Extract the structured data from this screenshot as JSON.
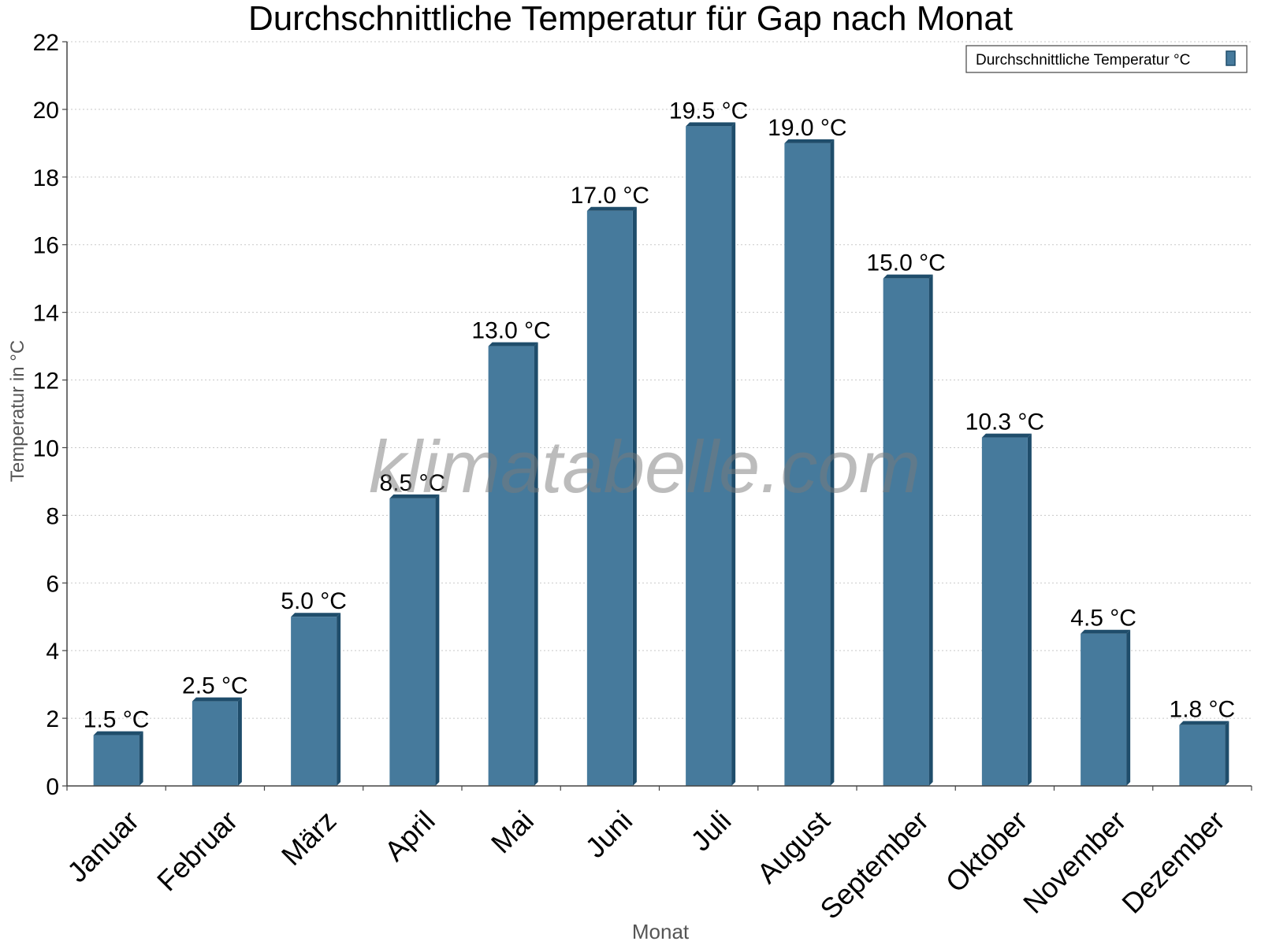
{
  "chart_data": {
    "type": "bar",
    "title": "Durchschnittliche Temperatur für Gap nach Monat",
    "xlabel": "Monat",
    "ylabel": "Temperatur in °C",
    "categories": [
      "Januar",
      "Februar",
      "März",
      "April",
      "Mai",
      "Juni",
      "Juli",
      "August",
      "September",
      "Oktober",
      "November",
      "Dezember"
    ],
    "series": [
      {
        "name": "Durchschnittliche Temperatur °C",
        "values": [
          1.5,
          2.5,
          5.0,
          8.5,
          13.0,
          17.0,
          19.5,
          19.0,
          15.0,
          10.3,
          4.5,
          1.8
        ],
        "value_labels": [
          "1.5 °C",
          "2.5 °C",
          "5.0 °C",
          "8.5 °C",
          "13.0 °C",
          "17.0 °C",
          "19.5 °C",
          "19.0 °C",
          "15.0 °C",
          "10.3 °C",
          "4.5 °C",
          "1.8 °C"
        ]
      }
    ],
    "ylim": [
      0,
      22
    ],
    "yticks": [
      "0",
      "2",
      "4",
      "6",
      "8",
      "10",
      "12",
      "14",
      "16",
      "18",
      "20",
      "22"
    ],
    "grid": true,
    "legend_position": "top-right",
    "colors": {
      "bar": "#467a9c",
      "bar_dark": "#1f4d6b",
      "grid": "#c8c8c8",
      "axis": "#444444"
    }
  },
  "watermark": "klimatabelle.com"
}
